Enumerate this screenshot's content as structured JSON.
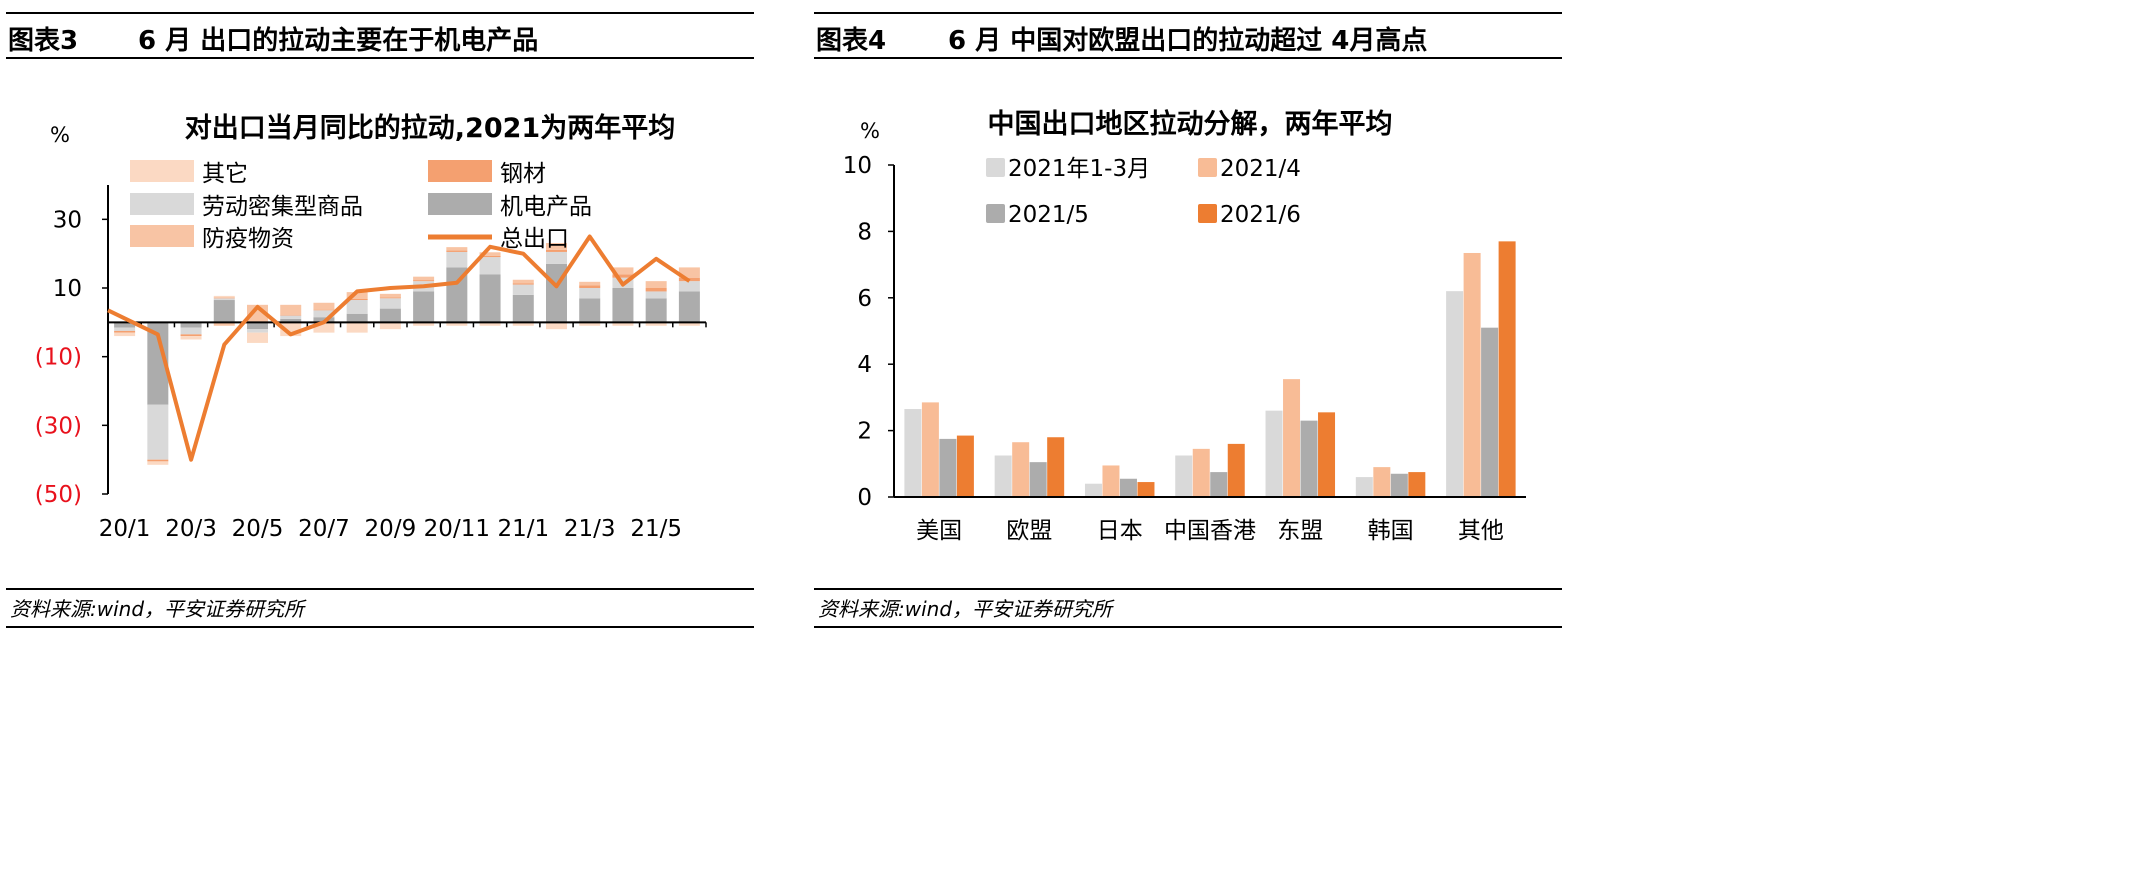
{
  "left": {
    "fig_label": "图表3",
    "fig_title": "6 月 出口的拉动主要在于机电产品",
    "source": "资料来源:wind，平安证券研究所",
    "chart_data": {
      "type": "bar",
      "title": "对出口当月同比的拉动,2021为两年平均",
      "ylabel": "%",
      "ylim": [
        -50,
        40
      ],
      "yticks": [
        30,
        10,
        -10,
        -30,
        -50
      ],
      "ytick_labels": [
        "30",
        "10",
        "(10)",
        "(30)",
        "(50)"
      ],
      "categories": [
        "20/1",
        "20/2",
        "20/3",
        "20/4",
        "20/5",
        "20/6",
        "20/7",
        "20/8",
        "20/9",
        "20/10",
        "20/11",
        "20/12",
        "21/1",
        "21/2",
        "21/3",
        "21/4",
        "21/5",
        "21/6"
      ],
      "xtick_labels": [
        "20/1",
        "20/3",
        "20/5",
        "20/7",
        "20/9",
        "20/11",
        "21/1",
        "21/3",
        "21/5"
      ],
      "legend": [
        "其它",
        "钢材",
        "劳动密集型商品",
        "机电产品",
        "防疫物资",
        "总出口"
      ],
      "colors": {
        "其它": "#fbd9c3",
        "钢材": "#f4a070",
        "劳动密集型商品": "#d9d9d9",
        "机电产品": "#acacac",
        "防疫物资": "#f8c4a4",
        "总出口": "#ed7d31"
      },
      "series": [
        {
          "name": "机电产品",
          "values": [
            -1.5,
            -24,
            -1.5,
            6.5,
            -2,
            1,
            1.5,
            2.5,
            4,
            9,
            16,
            14,
            8,
            17,
            7,
            10,
            7,
            9
          ]
        },
        {
          "name": "劳动密集型商品",
          "values": [
            -1,
            -16,
            -2,
            0.5,
            -1,
            1,
            2,
            4,
            3,
            3,
            4.5,
            5,
            3,
            3.5,
            3,
            3,
            2,
            3
          ]
        },
        {
          "name": "钢材",
          "values": [
            -0.5,
            -0.5,
            -0.5,
            0.2,
            0.1,
            0.1,
            0.2,
            0.3,
            0.3,
            0.3,
            0.4,
            0.4,
            0.4,
            0.6,
            0.8,
            1,
            1,
            1
          ]
        },
        {
          "name": "防疫物资",
          "values": [
            0,
            0,
            0,
            -1,
            5,
            3,
            2,
            2,
            1,
            1,
            1,
            1,
            1,
            2,
            1,
            2,
            2,
            3
          ]
        },
        {
          "name": "其它",
          "values": [
            -1,
            -1,
            -1,
            0.5,
            -3,
            -4,
            -3,
            -3,
            -2,
            -1,
            -1,
            -1,
            -1,
            -2,
            -1,
            -1,
            -1,
            -1
          ]
        },
        {
          "name": "总出口",
          "type": "line",
          "values": [
            3.5,
            -3.5,
            -40,
            -6.5,
            4.5,
            -3.5,
            0,
            9,
            10,
            10.5,
            11.5,
            22,
            20,
            10.5,
            25,
            11,
            18.5,
            12
          ]
        }
      ]
    }
  },
  "right": {
    "fig_label": "图表4",
    "fig_title": "6 月 中国对欧盟出口的拉动超过 4月高点",
    "source": "资料来源:wind，平安证券研究所",
    "chart_data": {
      "type": "bar",
      "title": "中国出口地区拉动分解，两年平均",
      "ylabel": "%",
      "ylim": [
        0,
        10
      ],
      "yticks": [
        0,
        2,
        4,
        6,
        8,
        10
      ],
      "categories": [
        "美国",
        "欧盟",
        "日本",
        "中国香港",
        "东盟",
        "韩国",
        "其他"
      ],
      "colors": {
        "2021年1-3月": "#d9d9d9",
        "2021/4": "#f8bc96",
        "2021/5": "#acacac",
        "2021/6": "#ed7d31"
      },
      "series": [
        {
          "name": "2021年1-3月",
          "values": [
            2.65,
            1.25,
            0.4,
            1.25,
            2.6,
            0.6,
            6.2
          ]
        },
        {
          "name": "2021/4",
          "values": [
            2.85,
            1.65,
            0.95,
            1.45,
            3.55,
            0.9,
            7.35
          ]
        },
        {
          "name": "2021/5",
          "values": [
            1.75,
            1.05,
            0.55,
            0.75,
            2.3,
            0.7,
            5.1
          ]
        },
        {
          "name": "2021/6",
          "values": [
            1.85,
            1.8,
            0.45,
            1.6,
            2.55,
            0.75,
            7.7
          ]
        }
      ]
    }
  }
}
